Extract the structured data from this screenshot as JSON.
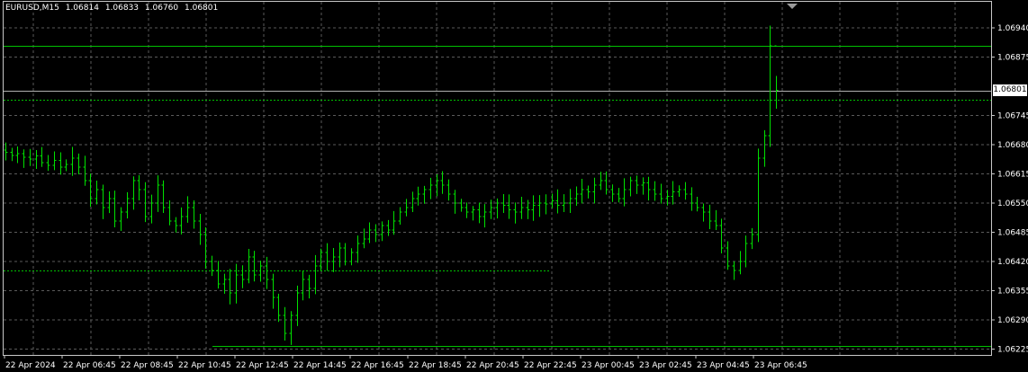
{
  "symbol": "EURUSD,M15",
  "ohlc": {
    "open": "1.06814",
    "high": "1.06833",
    "low": "1.06760",
    "close": "1.06801"
  },
  "current_price": "1.06801",
  "colors": {
    "background": "#000000",
    "bars": "#00e000",
    "grid": "#5a5a5a",
    "levels": "#00c000",
    "text": "#ffffff"
  },
  "chart_data": {
    "type": "bar",
    "title": "",
    "y_ticks": [
      "1.06940",
      "1.06875",
      "1.06745",
      "1.06680",
      "1.06615",
      "1.06550",
      "1.06485",
      "1.06420",
      "1.06355",
      "1.06290",
      "1.06225"
    ],
    "x_ticks": [
      "22 Apr 2024",
      "22 Apr 06:45",
      "22 Apr 08:45",
      "22 Apr 10:45",
      "22 Apr 12:45",
      "22 Apr 14:45",
      "22 Apr 16:45",
      "22 Apr 18:45",
      "22 Apr 20:45",
      "22 Apr 22:45",
      "23 Apr 00:45",
      "23 Apr 02:45",
      "23 Apr 04:45",
      "23 Apr 06:45"
    ],
    "ylim": [
      1.062,
      1.0696
    ],
    "horizontal_lines": [
      {
        "value": 1.069,
        "color": "#00c000",
        "style": "solid"
      },
      {
        "value": 1.06801,
        "color": "#b0b0b0",
        "style": "solid"
      },
      {
        "value": 1.0678,
        "color": "#00c000",
        "style": "dotted"
      },
      {
        "value": 1.064,
        "color": "#00c000",
        "style": "dotted"
      },
      {
        "value": 1.06232,
        "color": "#00c000",
        "style": "solid"
      }
    ],
    "close_series": [
      1.06663,
      1.06656,
      1.0666,
      1.06652,
      1.06648,
      1.06655,
      1.0664,
      1.06634,
      1.06645,
      1.0663,
      1.06636,
      1.0665,
      1.0663,
      1.066,
      1.0656,
      1.0658,
      1.0654,
      1.0656,
      1.0651,
      1.0653,
      1.0656,
      1.066,
      1.0658,
      1.0652,
      1.0655,
      1.0659,
      1.0654,
      1.0651,
      1.065,
      1.0652,
      1.0654,
      1.0651,
      1.0648,
      1.0642,
      1.064,
      1.0637,
      1.0638,
      1.0635,
      1.0639,
      1.0638,
      1.0643,
      1.0639,
      1.0641,
      1.0638,
      1.0634,
      1.063,
      1.0626,
      1.063,
      1.0635,
      1.0638,
      1.0636,
      1.0641,
      1.0644,
      1.0642,
      1.0643,
      1.0645,
      1.0642,
      1.0644,
      1.0646,
      1.0647,
      1.0649,
      1.0648,
      1.065,
      1.0649,
      1.0651,
      1.0653,
      1.0654,
      1.0656,
      1.0657,
      1.0658,
      1.0659,
      1.066,
      1.0659,
      1.0657,
      1.0655,
      1.0654,
      1.0653,
      1.06535,
      1.0652,
      1.0653,
      1.0654,
      1.0655,
      1.06545,
      1.06535,
      1.0653,
      1.0654,
      1.06535,
      1.06545,
      1.0655,
      1.06548,
      1.06555,
      1.06545,
      1.0655,
      1.0656,
      1.0657,
      1.0658,
      1.06575,
      1.0659,
      1.066,
      1.0658,
      1.0657,
      1.0656,
      1.0658,
      1.066,
      1.0659,
      1.06595,
      1.0658,
      1.0657,
      1.0656,
      1.06565,
      1.06575,
      1.0658,
      1.0657,
      1.0655,
      1.0654,
      1.0653,
      1.0651,
      1.065,
      1.0645,
      1.0641,
      1.064,
      1.0642,
      1.0646,
      1.0648,
      1.0665,
      1.067,
      1.069,
      1.06801
    ]
  }
}
